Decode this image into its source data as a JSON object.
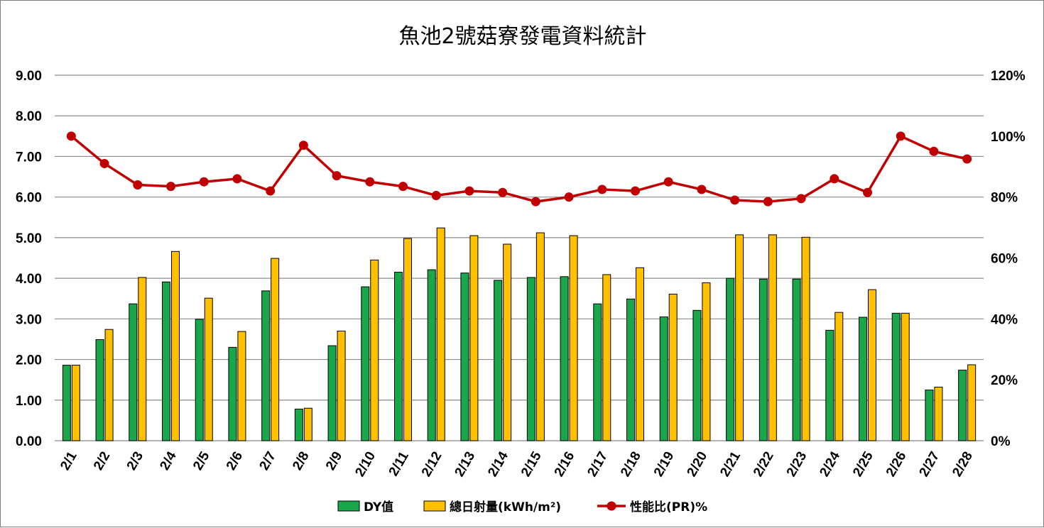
{
  "chart_data": {
    "type": "bar+line",
    "title": "魚池2號菇寮發電資料統計",
    "categories": [
      "2/1",
      "2/2",
      "2/3",
      "2/4",
      "2/5",
      "2/6",
      "2/7",
      "2/8",
      "2/9",
      "2/10",
      "2/11",
      "2/12",
      "2/13",
      "2/14",
      "2/15",
      "2/16",
      "2/17",
      "2/18",
      "2/19",
      "2/20",
      "2/21",
      "2/22",
      "2/23",
      "2/24",
      "2/25",
      "2/26",
      "2/27",
      "2/28"
    ],
    "y_left": {
      "min": 0,
      "max": 9,
      "step": 1,
      "tick_labels": [
        "0.00",
        "1.00",
        "2.00",
        "3.00",
        "4.00",
        "5.00",
        "6.00",
        "7.00",
        "8.00",
        "9.00"
      ]
    },
    "y_right": {
      "min": 0,
      "max": 120,
      "step": 20,
      "tick_labels": [
        "0%",
        "20%",
        "40%",
        "60%",
        "80%",
        "100%",
        "120%"
      ]
    },
    "grid": true,
    "legend_position": "bottom",
    "series": [
      {
        "name": "DY值",
        "type": "bar",
        "axis": "left",
        "color": "#1aa64a",
        "values": [
          1.86,
          2.49,
          3.37,
          3.91,
          2.99,
          2.3,
          3.69,
          0.78,
          2.34,
          3.79,
          4.15,
          4.21,
          4.13,
          3.95,
          4.02,
          4.04,
          3.37,
          3.49,
          3.05,
          3.21,
          4.0,
          3.98,
          3.98,
          2.72,
          3.04,
          3.14,
          1.25,
          1.74
        ]
      },
      {
        "name": "總日射量(kWh/m²)",
        "type": "bar",
        "axis": "left",
        "color": "#ffc000",
        "values": [
          1.86,
          2.74,
          4.02,
          4.66,
          3.51,
          2.69,
          4.49,
          0.8,
          2.7,
          4.45,
          4.98,
          5.24,
          5.05,
          4.84,
          5.12,
          5.05,
          4.09,
          4.26,
          3.61,
          3.89,
          5.07,
          5.07,
          5.01,
          3.16,
          3.72,
          3.14,
          1.32,
          1.87
        ]
      },
      {
        "name": "性能比(PR)%",
        "type": "line",
        "axis": "right",
        "color": "#c00000",
        "values": [
          100,
          91,
          84,
          83.5,
          85,
          86,
          82,
          97,
          87,
          85,
          83.5,
          80.5,
          82,
          81.5,
          78.5,
          80,
          82.5,
          82,
          85,
          82.5,
          79,
          78.5,
          79.5,
          86,
          81.5,
          100,
          95,
          92.5
        ]
      }
    ]
  }
}
